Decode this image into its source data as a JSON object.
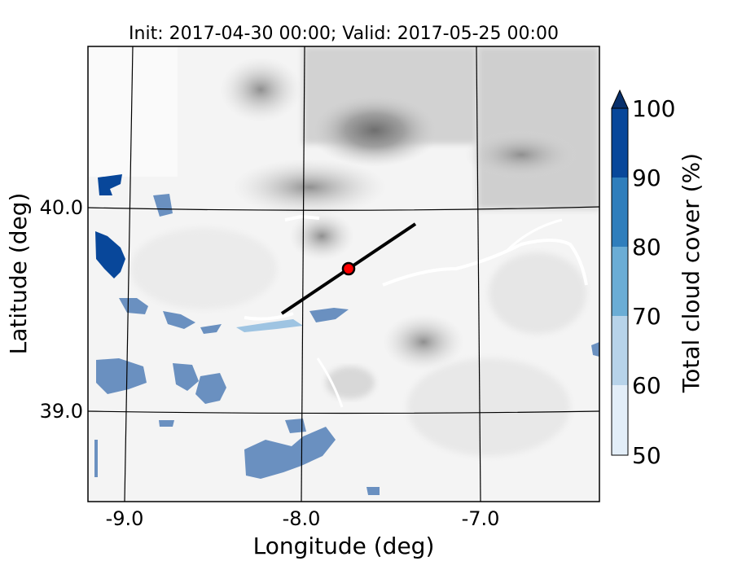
{
  "title": "Init: 2017-04-30 00:00; Valid: 2017-05-25 00:00",
  "xlabel": "Longitude (deg)",
  "ylabel": "Latitude (deg)",
  "x_ticks": [
    "-9.0",
    "-8.0",
    "-7.0"
  ],
  "y_ticks": [
    "40.0",
    "39.0"
  ],
  "colorbar": {
    "label": "Total cloud cover (%)",
    "ticks": [
      "50",
      "60",
      "70",
      "80",
      "90",
      "100"
    ],
    "levels": [
      50,
      60,
      70,
      80,
      90,
      100
    ],
    "colors": [
      "#e3eef8",
      "#b7d3e9",
      "#6badd5",
      "#2f7ebc",
      "#08479a"
    ],
    "extend_color": "#08306b"
  },
  "map": {
    "lon_range": [
      -9.2,
      -6.4
    ],
    "lat_range": [
      38.55,
      40.75
    ],
    "background_colormap": "greys",
    "cross_section_line": {
      "start": [
        -8.1,
        39.5
      ],
      "end": [
        -7.35,
        39.9
      ],
      "color": "#000000"
    },
    "point_marker": {
      "lon": -7.75,
      "lat": 39.7,
      "color": "#ff0000"
    }
  }
}
